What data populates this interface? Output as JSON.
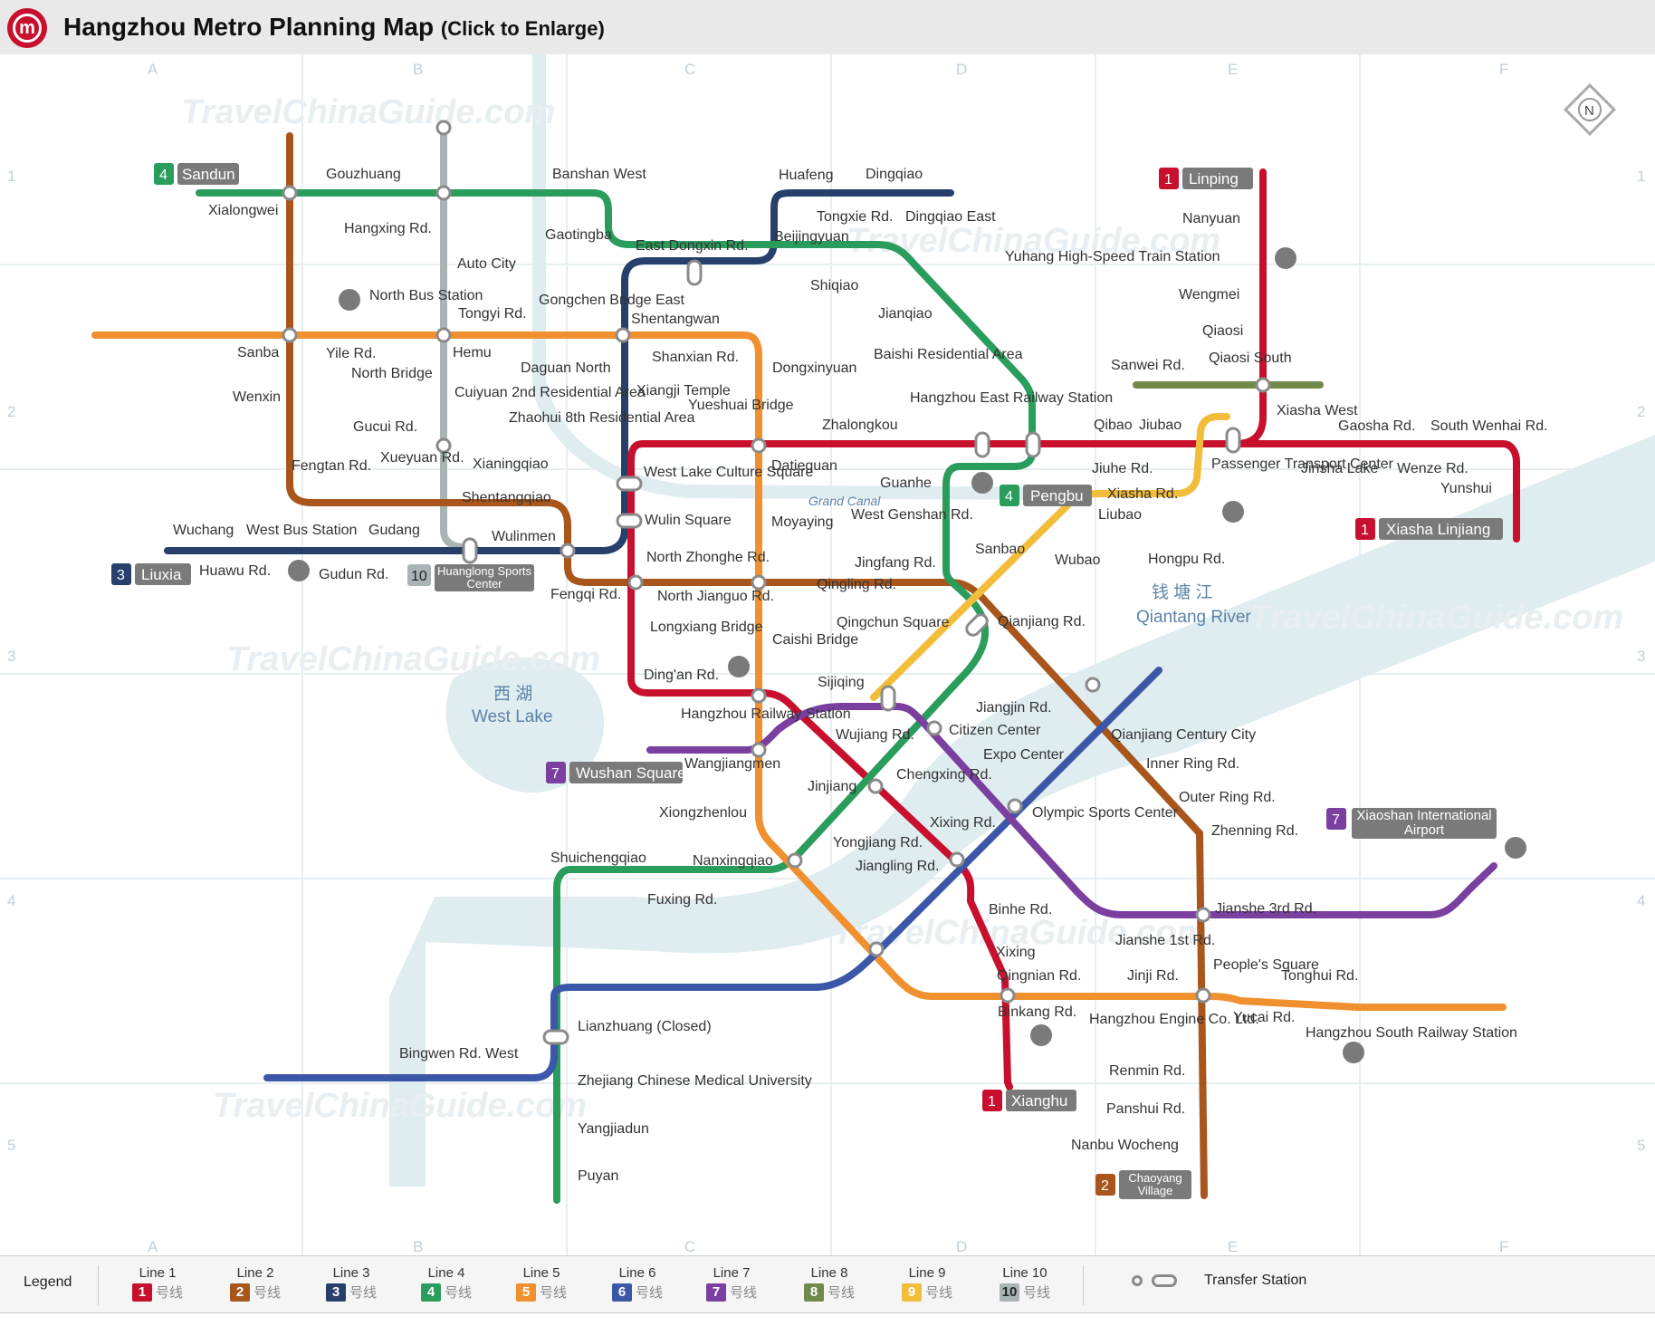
{
  "header": {
    "logo_glyph": "m",
    "title": "Hangzhou Metro Planning Map",
    "subtitle": "(Click to Enlarge)"
  },
  "map": {
    "watermark": "TravelChinaGuide.com",
    "grid_cols": [
      "A",
      "B",
      "C",
      "D",
      "E",
      "F"
    ],
    "grid_rows": [
      "1",
      "2",
      "3",
      "4",
      "5"
    ],
    "compass": "N",
    "water_labels": {
      "west_lake_cn": "西 湖",
      "west_lake_en": "West Lake",
      "river_cn": "钱 塘 江",
      "river_en": "Qiantang River",
      "canal": "Grand Canal"
    },
    "terminals": [
      {
        "num": "4",
        "name": "Sandun",
        "color": "#2a9d5c"
      },
      {
        "num": "1",
        "name": "Linping",
        "color": "#c8102e"
      },
      {
        "num": "4",
        "name": "Pengbu",
        "color": "#2a9d5c"
      },
      {
        "num": "1",
        "name": "Xiasha Linjiang",
        "color": "#c8102e"
      },
      {
        "num": "3",
        "name": "Liuxia",
        "color": "#27406b"
      },
      {
        "num": "10",
        "name": "Huanglong Sports Center",
        "color": "#a9b4b4"
      },
      {
        "num": "7",
        "name": "Wushan Square",
        "color": "#7b3fa0"
      },
      {
        "num": "7",
        "name": "Xiaoshan International Airport",
        "color": "#7b3fa0"
      },
      {
        "num": "1",
        "name": "Xianghu",
        "color": "#c8102e"
      },
      {
        "num": "2",
        "name": "Chaoyang Village",
        "color": "#a8561c"
      }
    ],
    "stations": [
      "Gouzhuang",
      "Banshan West",
      "Huafeng",
      "Dingqiao",
      "Xialongwei",
      "Hangxing Rd.",
      "Gaotingba",
      "Tongxie Rd.",
      "Dingqiao East",
      "Beijingyuan",
      "East Dongxin Rd.",
      "Auto City",
      "Yuhang High-Speed Train Station",
      "Nanyuan",
      "Shiqiao",
      "North Bus Station",
      "Gongchen Bridge East",
      "Wengmei",
      "Tongyi Rd.",
      "Shentangwan",
      "Jianqiao",
      "Qiaosi",
      "Sanba",
      "Yile Rd.",
      "Hemu",
      "Shanxian Rd.",
      "Sanwei Rd.",
      "Qiaosi South",
      "North Bridge",
      "Daguan North",
      "Dongxinyuan",
      "Baishi Residential Area",
      "Wenxin",
      "Cuiyuan 2nd Residential Area",
      "Xiangji Temple",
      "Yueshuai Bridge",
      "Hangzhou East Railway Station",
      "Xiasha West",
      "Zhaohui 8th Residential Area",
      "Zhalongkou",
      "Qibao",
      "Jiubao",
      "Gaosha Rd.",
      "South Wenhai Rd.",
      "Gucui Rd.",
      "Fengtan Rd.",
      "Xueyuan Rd.",
      "Xianingqiao",
      "West Lake Culture Square",
      "Datieguan",
      "Jiuhe Rd.",
      "Passenger Transport Center",
      "Jinsha Lake",
      "Wenze Rd.",
      "Guanhe",
      "Xiasha Rd.",
      "Yunshui",
      "Shentangqiao",
      "Grand Canal",
      "Wulin Square",
      "Moyaying",
      "West Genshan Rd.",
      "Liubao",
      "Wuchang",
      "West Bus Station",
      "Gudang",
      "Wulinmen",
      "Sanbao",
      "Wubao",
      "Hongpu Rd.",
      "Huawu Rd.",
      "Gudun Rd.",
      "North Zhonghe Rd.",
      "Jingfang Rd.",
      "Fengqi Rd.",
      "North Jianguo Rd.",
      "Qingling Rd.",
      "Qingchun Square",
      "Qianjiang Rd.",
      "Longxiang Bridge",
      "Caishi Bridge",
      "Ding'an Rd.",
      "Sijiqing",
      "Jiangjin Rd.",
      "Hangzhou Railway Station",
      "Wujiang Rd.",
      "Citizen Center",
      "Qianjiang Century City",
      "Wangjiangmen",
      "Expo Center",
      "Inner Ring Rd.",
      "Chengxing Rd.",
      "Jinjiang",
      "Outer Ring Rd.",
      "Xiongzhenlou",
      "Olympic Sports Center",
      "Xixing Rd.",
      "Zhenning Rd.",
      "Shuichengqiao",
      "Nanxingqiao",
      "Yongjiang Rd.",
      "Jiangling Rd.",
      "Fuxing Rd.",
      "Jianshe 3rd Rd.",
      "Binhe Rd.",
      "Jianshe 1st Rd.",
      "Xixing",
      "People's Square",
      "Qingnian Rd.",
      "Jinji Rd.",
      "Tonghui Rd.",
      "Binkang Rd.",
      "Hangzhou Engine Co. Ltd.",
      "Yucai Rd.",
      "Hangzhou South Railway Station",
      "Lianzhuang (Closed)",
      "Bingwen Rd. West",
      "Zhejiang Chinese Medical University",
      "Renmin Rd.",
      "Panshui Rd.",
      "Yangjiadun",
      "Nanbu Wocheng",
      "Puyan"
    ]
  },
  "legend": {
    "title": "Legend",
    "suffix": "号线",
    "lines": [
      {
        "name": "Line 1",
        "num": "1",
        "color": "#c8102e"
      },
      {
        "name": "Line 2",
        "num": "2",
        "color": "#a8561c"
      },
      {
        "name": "Line 3",
        "num": "3",
        "color": "#27406b"
      },
      {
        "name": "Line 4",
        "num": "4",
        "color": "#2a9d5c"
      },
      {
        "name": "Line 5",
        "num": "5",
        "color": "#f0902e"
      },
      {
        "name": "Line 6",
        "num": "6",
        "color": "#3b57a8"
      },
      {
        "name": "Line 7",
        "num": "7",
        "color": "#7b3fa0"
      },
      {
        "name": "Line 8",
        "num": "8",
        "color": "#6f8a4a"
      },
      {
        "name": "Line 9",
        "num": "9",
        "color": "#f2bd3a"
      },
      {
        "name": "Line 10",
        "num": "10",
        "color": "#a9b4b4"
      }
    ],
    "transfer_label": "Transfer Station"
  }
}
